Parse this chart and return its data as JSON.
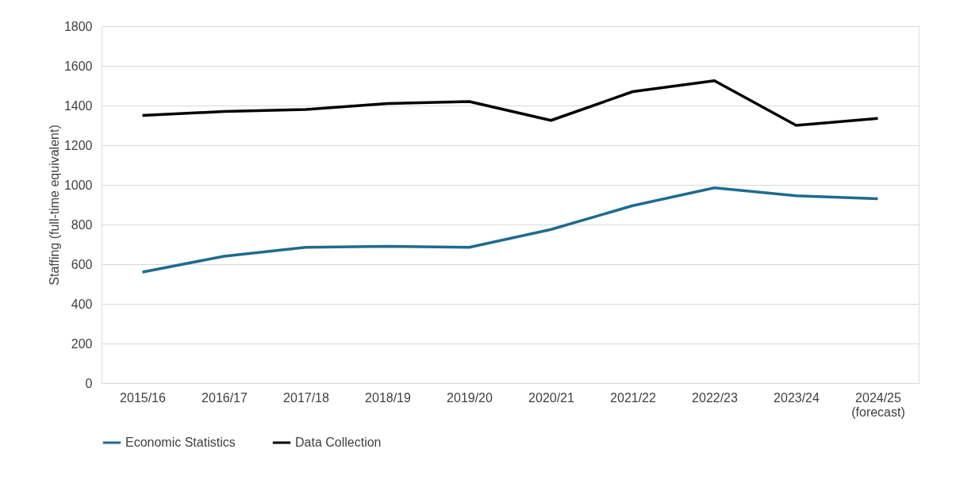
{
  "chart_data": {
    "type": "line",
    "ylabel": "Staffing (full-time equivalent)",
    "categories": [
      "2015/16",
      "2016/17",
      "2017/18",
      "2018/19",
      "2019/20",
      "2020/21",
      "2021/22",
      "2022/23",
      "2023/24",
      "2024/25\n(forecast)"
    ],
    "series": [
      {
        "name": "Economic Statistics",
        "color": "#1f6b8e",
        "values": [
          560,
          640,
          685,
          690,
          685,
          775,
          895,
          985,
          945,
          930
        ]
      },
      {
        "name": "Data Collection",
        "color": "#000000",
        "values": [
          1350,
          1370,
          1380,
          1410,
          1420,
          1325,
          1470,
          1525,
          1300,
          1335
        ]
      }
    ],
    "ylim": [
      0,
      1800
    ],
    "yticks": [
      0,
      200,
      400,
      600,
      800,
      1000,
      1200,
      1400,
      1600,
      1800
    ],
    "grid": "y",
    "legend": "bottom",
    "marker": "none",
    "line_style": "solid"
  }
}
